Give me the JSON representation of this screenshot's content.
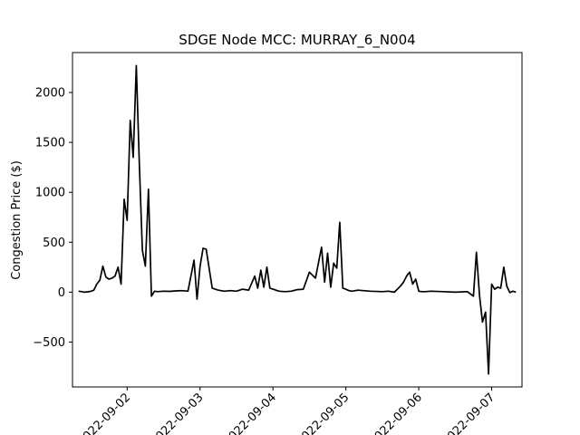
{
  "chart_data": {
    "type": "line",
    "title": "SDGE Node MCC: MURRAY_6_N004",
    "xlabel": "",
    "ylabel": "Congestion Price ($)",
    "x_type": "datetime",
    "xlim": [
      "2022-09-01T06:00",
      "2022-09-07T10:00"
    ],
    "ylim": [
      -950,
      2400
    ],
    "yticks": [
      -500,
      0,
      500,
      1000,
      1500,
      2000
    ],
    "ytick_labels": [
      "−500",
      "0",
      "500",
      "1000",
      "1500",
      "2000"
    ],
    "xticks": [
      "2022-09-02",
      "2022-09-03",
      "2022-09-04",
      "2022-09-05",
      "2022-09-06",
      "2022-09-07"
    ],
    "xtick_labels": [
      "2022-09-02",
      "2022-09-03",
      "2022-09-04",
      "2022-09-05",
      "2022-09-06",
      "2022-09-07"
    ],
    "xtick_rotation": 45,
    "grid": false,
    "legend": "none",
    "line_color": "#000000",
    "series": [
      {
        "x": [
          "2022-09-01T08:00",
          "2022-09-01T09:00",
          "2022-09-01T10:00",
          "2022-09-01T11:00",
          "2022-09-01T12:00",
          "2022-09-01T13:00",
          "2022-09-01T14:00",
          "2022-09-01T15:00",
          "2022-09-01T16:00",
          "2022-09-01T17:00",
          "2022-09-01T18:00",
          "2022-09-01T19:00",
          "2022-09-01T20:00",
          "2022-09-01T21:00",
          "2022-09-01T22:00",
          "2022-09-01T23:00",
          "2022-09-02T00:00",
          "2022-09-02T01:00",
          "2022-09-02T02:00",
          "2022-09-02T03:00",
          "2022-09-02T04:00",
          "2022-09-02T05:00",
          "2022-09-02T06:00",
          "2022-09-02T07:00",
          "2022-09-02T08:00",
          "2022-09-02T09:00",
          "2022-09-02T10:00",
          "2022-09-02T12:00",
          "2022-09-02T14:00",
          "2022-09-02T16:00",
          "2022-09-02T18:00",
          "2022-09-02T20:00",
          "2022-09-02T22:00",
          "2022-09-02T23:00",
          "2022-09-03T00:00",
          "2022-09-03T01:00",
          "2022-09-03T02:00",
          "2022-09-03T04:00",
          "2022-09-03T06:00",
          "2022-09-03T08:00",
          "2022-09-03T10:00",
          "2022-09-03T12:00",
          "2022-09-03T14:00",
          "2022-09-03T16:00",
          "2022-09-03T18:00",
          "2022-09-03T19:00",
          "2022-09-03T20:00",
          "2022-09-03T21:00",
          "2022-09-03T22:00",
          "2022-09-03T23:00",
          "2022-09-04T00:00",
          "2022-09-04T01:00",
          "2022-09-04T02:00",
          "2022-09-04T04:00",
          "2022-09-04T06:00",
          "2022-09-04T08:00",
          "2022-09-04T10:00",
          "2022-09-04T12:00",
          "2022-09-04T14:00",
          "2022-09-04T16:00",
          "2022-09-04T17:00",
          "2022-09-04T18:00",
          "2022-09-04T19:00",
          "2022-09-04T20:00",
          "2022-09-04T21:00",
          "2022-09-04T22:00",
          "2022-09-04T23:00",
          "2022-09-05T00:00",
          "2022-09-05T01:00",
          "2022-09-05T02:00",
          "2022-09-05T04:00",
          "2022-09-05T08:00",
          "2022-09-05T12:00",
          "2022-09-05T14:00",
          "2022-09-05T16:00",
          "2022-09-05T18:00",
          "2022-09-05T19:00",
          "2022-09-05T20:00",
          "2022-09-05T21:00",
          "2022-09-05T22:00",
          "2022-09-05T23:00",
          "2022-09-06T00:00",
          "2022-09-06T01:00",
          "2022-09-06T02:00",
          "2022-09-06T04:00",
          "2022-09-06T08:00",
          "2022-09-06T12:00",
          "2022-09-06T16:00",
          "2022-09-06T18:00",
          "2022-09-06T19:00",
          "2022-09-06T20:00",
          "2022-09-06T21:00",
          "2022-09-06T22:00",
          "2022-09-06T23:00",
          "2022-09-07T00:00",
          "2022-09-07T01:00",
          "2022-09-07T02:00",
          "2022-09-07T03:00",
          "2022-09-07T04:00",
          "2022-09-07T05:00",
          "2022-09-07T06:00",
          "2022-09-07T07:00",
          "2022-09-07T08:00"
        ],
        "y": [
          10,
          5,
          0,
          3,
          8,
          20,
          80,
          120,
          260,
          150,
          130,
          140,
          160,
          250,
          80,
          930,
          720,
          1720,
          1350,
          2270,
          1300,
          420,
          260,
          1030,
          -40,
          10,
          5,
          10,
          8,
          12,
          15,
          10,
          320,
          -70,
          260,
          440,
          430,
          40,
          20,
          10,
          15,
          10,
          30,
          20,
          160,
          40,
          220,
          50,
          250,
          40,
          30,
          20,
          10,
          5,
          10,
          25,
          30,
          200,
          140,
          450,
          100,
          390,
          50,
          290,
          240,
          700,
          40,
          30,
          15,
          10,
          20,
          10,
          5,
          10,
          0,
          60,
          100,
          160,
          200,
          80,
          130,
          10,
          5,
          5,
          10,
          5,
          0,
          5,
          -40,
          400,
          -30,
          -300,
          -200,
          -820,
          80,
          30,
          50,
          40,
          250,
          60,
          -5,
          10,
          0
        ]
      }
    ]
  }
}
